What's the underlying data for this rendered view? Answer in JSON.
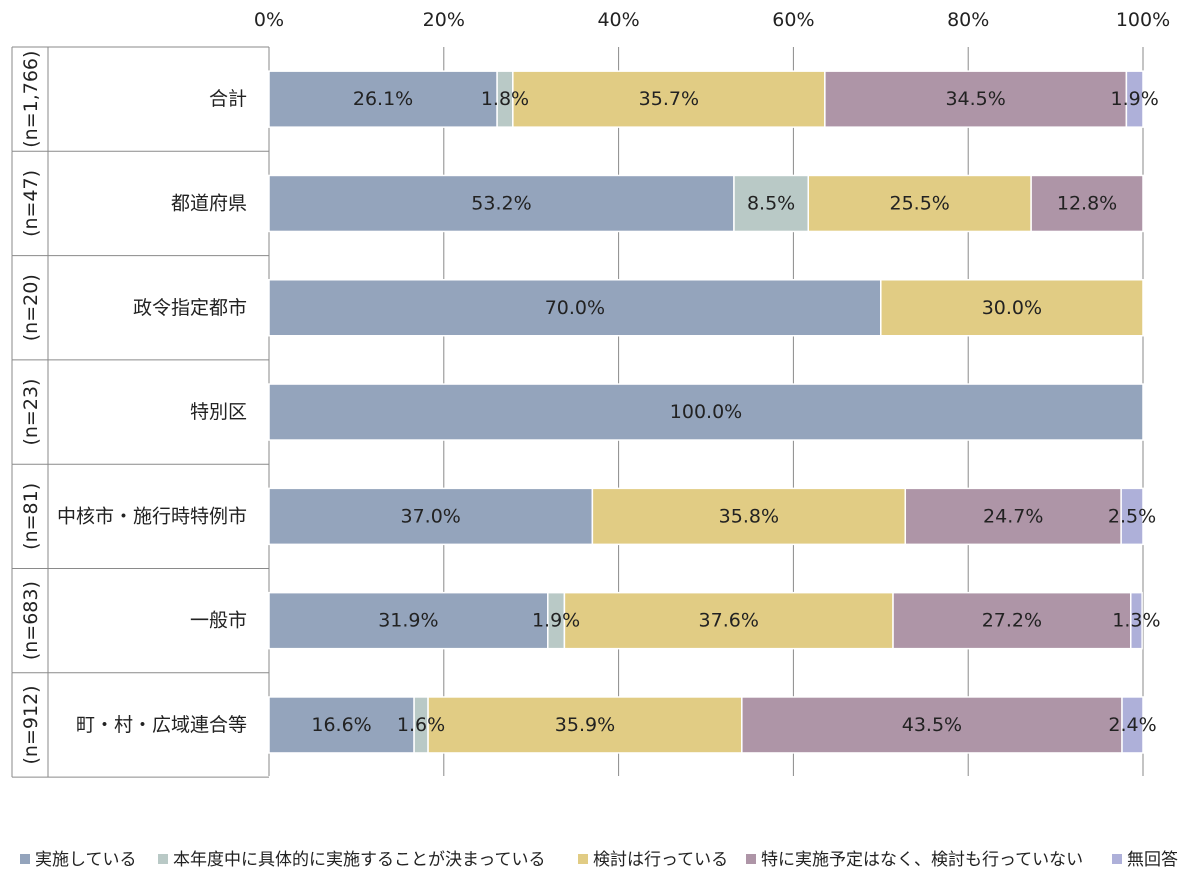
{
  "chart_data": {
    "type": "bar",
    "orientation": "horizontal",
    "stacked": true,
    "percent_axis": true,
    "xlim": [
      0,
      100
    ],
    "x_ticks": [
      "0%",
      "20%",
      "40%",
      "60%",
      "80%",
      "100%"
    ],
    "grid": true,
    "legend_position": "bottom",
    "categories": [
      "合計",
      "都道府県",
      "政令指定都市",
      "特別区",
      "中核市・施行時特例市",
      "一般市",
      "町・村・広域連合等"
    ],
    "sample_sizes": [
      "(n=1,766)",
      "(n=47)",
      "(n=20)",
      "(n=23)",
      "(n=81)",
      "(n=683)",
      "(n=912)"
    ],
    "series": [
      {
        "name": "実施している",
        "color": "#94a4bc",
        "values": [
          26.1,
          53.2,
          70.0,
          100.0,
          37.0,
          31.9,
          16.6
        ],
        "labels": [
          "26.1%",
          "53.2%",
          "70.0%",
          "100.0%",
          "37.0%",
          "31.9%",
          "16.6%"
        ]
      },
      {
        "name": "本年度中に具体的に実施することが決まっている",
        "color": "#b9c9c6",
        "values": [
          1.8,
          8.5,
          0,
          0,
          0,
          1.9,
          1.6
        ],
        "labels": [
          "1.8%",
          "8.5%",
          "",
          "",
          "",
          "1.9%",
          "1.6%"
        ]
      },
      {
        "name": "検討は行っている",
        "color": "#e1cc84",
        "values": [
          35.7,
          25.5,
          30.0,
          0,
          35.8,
          37.6,
          35.9
        ],
        "labels": [
          "35.7%",
          "25.5%",
          "30.0%",
          "",
          "35.8%",
          "37.6%",
          "35.9%"
        ]
      },
      {
        "name": "特に実施予定はなく、検討も行っていない",
        "color": "#ae95a7",
        "values": [
          34.5,
          12.8,
          0,
          0,
          24.7,
          27.2,
          43.5
        ],
        "labels": [
          "34.5%",
          "12.8%",
          "",
          "",
          "24.7%",
          "27.2%",
          "43.5%"
        ]
      },
      {
        "name": "無回答",
        "color": "#aeb0d9",
        "values": [
          1.9,
          0,
          0,
          0,
          2.5,
          1.3,
          2.4
        ],
        "labels": [
          "1.9%",
          "",
          "",
          "",
          "2.5%",
          "1.3%",
          "2.4%"
        ]
      }
    ]
  }
}
